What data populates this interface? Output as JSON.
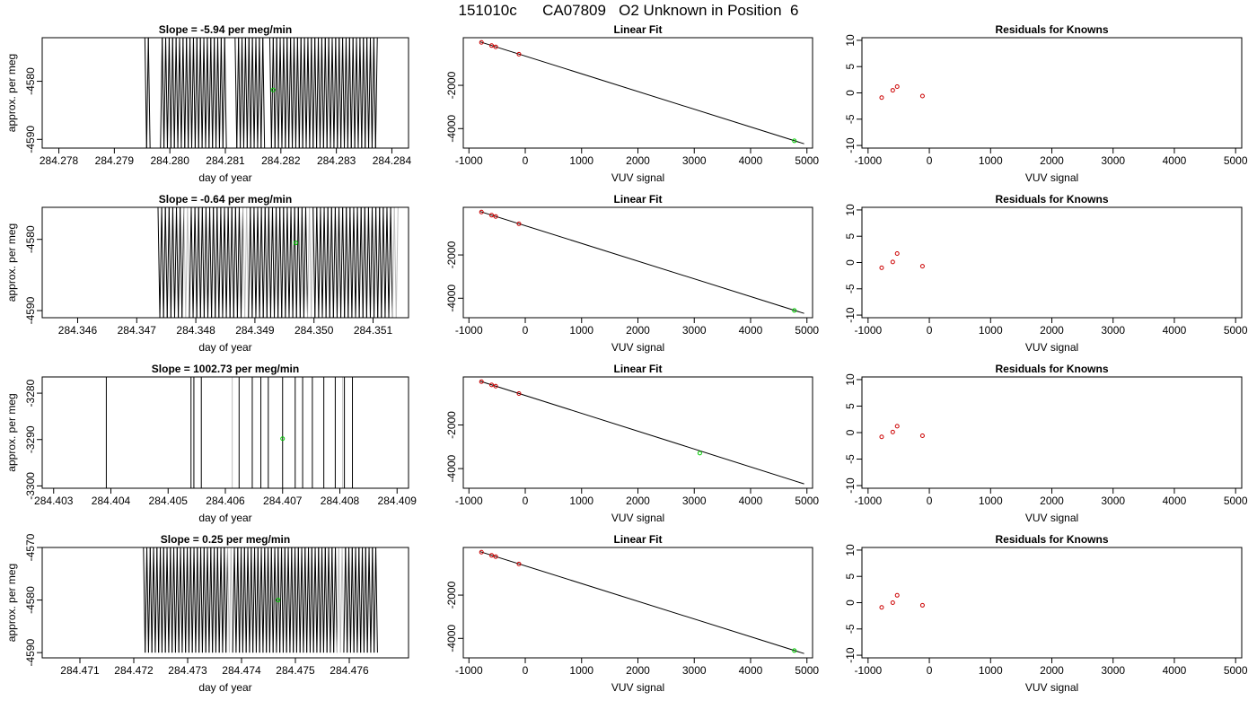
{
  "page_title": "151010c      CA07809   O2 Unknown in Position  6",
  "colors": {
    "axis": "#000000",
    "trace_black": "#000000",
    "trace_gray": "#bdbdbd",
    "unknown_marker": "#00cc00",
    "known_marker": "#cc0000"
  },
  "chart_data": [
    {
      "type": "line",
      "panel": "slope",
      "row": 1,
      "title": "Slope =  -5.94  per meg/min",
      "xlabel": "day of year",
      "ylabel": "approx. per meg",
      "xlim": [
        284.2777,
        284.2843
      ],
      "ylim": [
        -4591.5,
        -4572.5
      ],
      "xticks": [
        284.278,
        284.279,
        284.28,
        284.281,
        284.282,
        284.283,
        284.284
      ],
      "xtick_labels": [
        "284.278",
        "284.279",
        "284.280",
        "284.281",
        "284.282",
        "284.283",
        "284.284"
      ],
      "yticks": [
        -4580,
        -4590
      ],
      "ytick_labels": [
        "-4580",
        "-4590"
      ],
      "trace": {
        "x_start": 284.27955,
        "x_end": 284.28376,
        "period": 6.25e-05,
        "y_low": -4591.5,
        "y_high": -4572.5,
        "gaps": [
          [
            284.27966,
            284.27982
          ],
          [
            284.28104,
            284.28115
          ],
          [
            284.28172,
            284.28177
          ]
        ],
        "gray_segments": []
      },
      "unknown_point": {
        "x": 284.28186,
        "y": -4581.5
      }
    },
    {
      "type": "scatter",
      "panel": "fit",
      "row": 1,
      "title": "Linear Fit",
      "xlabel": "VUV signal",
      "ylabel": "",
      "xlim": [
        -1100,
        5100
      ],
      "ylim": [
        -4900,
        200
      ],
      "xticks": [
        -1000,
        0,
        1000,
        2000,
        3000,
        4000,
        5000
      ],
      "xtick_labels": [
        "-1000",
        "0",
        "1000",
        "2000",
        "3000",
        "4000",
        "5000"
      ],
      "yticks": [
        -2000,
        -4000
      ],
      "ytick_labels": [
        "-2000",
        "-4000"
      ],
      "fit_line": {
        "x": [
          -800,
          4950
        ],
        "y": [
          6,
          -4700
        ]
      },
      "knowns": {
        "x": [
          -778,
          -597,
          -525,
          -112
        ],
        "y": [
          -17,
          -165,
          -223,
          -561
        ]
      },
      "unknown": {
        "x": 4777,
        "y": -4565
      }
    },
    {
      "type": "scatter",
      "panel": "residuals",
      "row": 1,
      "title": "Residuals for Knowns",
      "xlabel": "VUV signal",
      "ylabel": "",
      "xlim": [
        -1100,
        5100
      ],
      "ylim": [
        -10.5,
        10.5
      ],
      "xticks": [
        -1000,
        0,
        1000,
        2000,
        3000,
        4000,
        5000
      ],
      "xtick_labels": [
        "-1000",
        "0",
        "1000",
        "2000",
        "3000",
        "4000",
        "5000"
      ],
      "yticks": [
        10,
        5,
        0,
        -5,
        -10
      ],
      "ytick_labels": [
        "10",
        "5",
        "0",
        "-5",
        "-10"
      ],
      "points": {
        "x": [
          -778,
          -597,
          -525,
          -112
        ],
        "y": [
          -0.9,
          0.5,
          1.2,
          -0.6
        ]
      }
    },
    {
      "type": "line",
      "panel": "slope",
      "row": 2,
      "title": "Slope =  -0.64  per meg/min",
      "xlabel": "day of year",
      "ylabel": "approx. per meg",
      "xlim": [
        284.3454,
        284.3516
      ],
      "ylim": [
        -4591.0,
        -4575.5
      ],
      "xticks": [
        284.346,
        284.347,
        284.348,
        284.349,
        284.35,
        284.351
      ],
      "xtick_labels": [
        "284.346",
        "284.347",
        "284.348",
        "284.349",
        "284.350",
        "284.351"
      ],
      "yticks": [
        -4580,
        -4590
      ],
      "ytick_labels": [
        "-4580",
        "-4590"
      ],
      "trace": {
        "x_start": 284.34736,
        "x_end": 284.35145,
        "period": 6.25e-05,
        "y_low": -4591.0,
        "y_high": -4575.5,
        "gaps": [],
        "gray_segments": [
          [
            284.3478,
            284.3479
          ],
          [
            284.3488,
            284.3489
          ],
          [
            284.3499,
            284.35
          ],
          [
            284.35135,
            284.35145
          ]
        ]
      },
      "unknown_point": {
        "x": 284.34969,
        "y": -4580.5
      }
    },
    {
      "type": "scatter",
      "panel": "fit",
      "row": 2,
      "title": "Linear Fit",
      "xlabel": "VUV signal",
      "ylabel": "",
      "xlim": [
        -1100,
        5100
      ],
      "ylim": [
        -4900,
        200
      ],
      "xticks": [
        -1000,
        0,
        1000,
        2000,
        3000,
        4000,
        5000
      ],
      "xtick_labels": [
        "-1000",
        "0",
        "1000",
        "2000",
        "3000",
        "4000",
        "5000"
      ],
      "yticks": [
        -2000,
        -4000
      ],
      "ytick_labels": [
        "-2000",
        "-4000"
      ],
      "fit_line": {
        "x": [
          -800,
          4950
        ],
        "y": [
          6,
          -4700
        ]
      },
      "knowns": {
        "x": [
          -778,
          -597,
          -525,
          -112
        ],
        "y": [
          -17,
          -165,
          -223,
          -561
        ]
      },
      "unknown": {
        "x": 4777,
        "y": -4565
      }
    },
    {
      "type": "scatter",
      "panel": "residuals",
      "row": 2,
      "title": "Residuals for Knowns",
      "xlabel": "VUV signal",
      "ylabel": "",
      "xlim": [
        -1100,
        5100
      ],
      "ylim": [
        -10.5,
        10.5
      ],
      "xticks": [
        -1000,
        0,
        1000,
        2000,
        3000,
        4000,
        5000
      ],
      "xtick_labels": [
        "-1000",
        "0",
        "1000",
        "2000",
        "3000",
        "4000",
        "5000"
      ],
      "yticks": [
        10,
        5,
        0,
        -5,
        -10
      ],
      "ytick_labels": [
        "10",
        "5",
        "0",
        "-5",
        "-10"
      ],
      "points": {
        "x": [
          -778,
          -597,
          -525,
          -112
        ],
        "y": [
          -1.0,
          0.1,
          1.7,
          -0.7
        ]
      }
    },
    {
      "type": "line",
      "panel": "slope",
      "row": 3,
      "title": "Slope =  1002.73  per meg/min",
      "xlabel": "day of year",
      "ylabel": "approx. per meg",
      "xlim": [
        284.4028,
        284.4092
      ],
      "ylim": [
        -3300.5,
        -3276.5
      ],
      "xticks": [
        284.403,
        284.404,
        284.405,
        284.406,
        284.407,
        284.408,
        284.409
      ],
      "xtick_labels": [
        "284.403",
        "284.404",
        "284.405",
        "284.406",
        "284.407",
        "284.408",
        "284.409"
      ],
      "yticks": [
        -3280,
        -3290,
        -3300
      ],
      "ytick_labels": [
        "-3280",
        "-3290",
        "-3300"
      ],
      "vlines": {
        "black": [
          284.40392,
          284.4054,
          284.40545,
          284.40558,
          284.40624,
          284.40647,
          284.40662,
          284.40675,
          284.407,
          284.40722,
          284.40735,
          284.40752,
          284.40772,
          284.40792,
          284.40808,
          284.40822
        ],
        "gray": [
          284.40612,
          284.40805
        ]
      },
      "unknown_point": {
        "x": 284.407,
        "y": -3289.8
      }
    },
    {
      "type": "scatter",
      "panel": "fit",
      "row": 3,
      "title": "Linear Fit",
      "xlabel": "VUV signal",
      "ylabel": "",
      "xlim": [
        -1100,
        5100
      ],
      "ylim": [
        -4900,
        200
      ],
      "xticks": [
        -1000,
        0,
        1000,
        2000,
        3000,
        4000,
        5000
      ],
      "xtick_labels": [
        "-1000",
        "0",
        "1000",
        "2000",
        "3000",
        "4000",
        "5000"
      ],
      "yticks": [
        -2000,
        -4000
      ],
      "ytick_labels": [
        "-2000",
        "-4000"
      ],
      "fit_line": {
        "x": [
          -800,
          4950
        ],
        "y": [
          6,
          -4700
        ]
      },
      "knowns": {
        "x": [
          -778,
          -597,
          -525,
          -112
        ],
        "y": [
          -17,
          -165,
          -223,
          -561
        ]
      },
      "unknown": {
        "x": 3098,
        "y": -3290
      }
    },
    {
      "type": "scatter",
      "panel": "residuals",
      "row": 3,
      "title": "Residuals for Knowns",
      "xlabel": "VUV signal",
      "ylabel": "",
      "xlim": [
        -1100,
        5100
      ],
      "ylim": [
        -10.5,
        10.5
      ],
      "xticks": [
        -1000,
        0,
        1000,
        2000,
        3000,
        4000,
        5000
      ],
      "xtick_labels": [
        "-1000",
        "0",
        "1000",
        "2000",
        "3000",
        "4000",
        "5000"
      ],
      "yticks": [
        10,
        5,
        0,
        -5,
        -10
      ],
      "ytick_labels": [
        "10",
        "5",
        "0",
        "-5",
        "-10"
      ],
      "points": {
        "x": [
          -778,
          -597,
          -525,
          -112
        ],
        "y": [
          -0.8,
          0.1,
          1.2,
          -0.6
        ]
      }
    },
    {
      "type": "line",
      "panel": "slope",
      "row": 4,
      "title": "Slope =  0.25  per meg/min",
      "xlabel": "day of year",
      "ylabel": "approx. per meg",
      "xlim": [
        284.4703,
        284.4771
      ],
      "ylim": [
        -4591.0,
        -4570.0
      ],
      "xticks": [
        284.471,
        284.472,
        284.473,
        284.474,
        284.475,
        284.476
      ],
      "xtick_labels": [
        "284.471",
        "284.472",
        "284.473",
        "284.474",
        "284.475",
        "284.476"
      ],
      "yticks": [
        -4570,
        -4580,
        -4590
      ],
      "ytick_labels": [
        "-4570",
        "-4580",
        "-4590"
      ],
      "trace": {
        "x_start": 284.47218,
        "x_end": 284.47655,
        "period": 6.25e-05,
        "y_low": -4590.0,
        "y_high": -4570.0,
        "gaps": [],
        "gray_segments": [
          [
            284.47375,
            284.47385
          ],
          [
            284.4758,
            284.4759
          ]
        ]
      },
      "unknown_point": {
        "x": 284.47468,
        "y": -4580.0
      }
    },
    {
      "type": "scatter",
      "panel": "fit",
      "row": 4,
      "title": "Linear Fit",
      "xlabel": "VUV signal",
      "ylabel": "",
      "xlim": [
        -1100,
        5100
      ],
      "ylim": [
        -4900,
        200
      ],
      "xticks": [
        -1000,
        0,
        1000,
        2000,
        3000,
        4000,
        5000
      ],
      "xtick_labels": [
        "-1000",
        "0",
        "1000",
        "2000",
        "3000",
        "4000",
        "5000"
      ],
      "yticks": [
        -2000,
        -4000
      ],
      "ytick_labels": [
        "-2000",
        "-4000"
      ],
      "fit_line": {
        "x": [
          -800,
          4950
        ],
        "y": [
          6,
          -4700
        ]
      },
      "knowns": {
        "x": [
          -778,
          -597,
          -525,
          -112
        ],
        "y": [
          -17,
          -165,
          -223,
          -561
        ]
      },
      "unknown": {
        "x": 4777,
        "y": -4565
      }
    },
    {
      "type": "scatter",
      "panel": "residuals",
      "row": 4,
      "title": "Residuals for Knowns",
      "xlabel": "VUV signal",
      "ylabel": "",
      "xlim": [
        -1100,
        5100
      ],
      "ylim": [
        -10.5,
        10.5
      ],
      "xticks": [
        -1000,
        0,
        1000,
        2000,
        3000,
        4000,
        5000
      ],
      "xtick_labels": [
        "-1000",
        "0",
        "1000",
        "2000",
        "3000",
        "4000",
        "5000"
      ],
      "yticks": [
        10,
        5,
        0,
        -5,
        -10
      ],
      "ytick_labels": [
        "10",
        "5",
        "0",
        "-5",
        "-10"
      ],
      "points": {
        "x": [
          -778,
          -597,
          -525,
          -112
        ],
        "y": [
          -0.9,
          0.0,
          1.4,
          -0.5
        ]
      }
    }
  ]
}
